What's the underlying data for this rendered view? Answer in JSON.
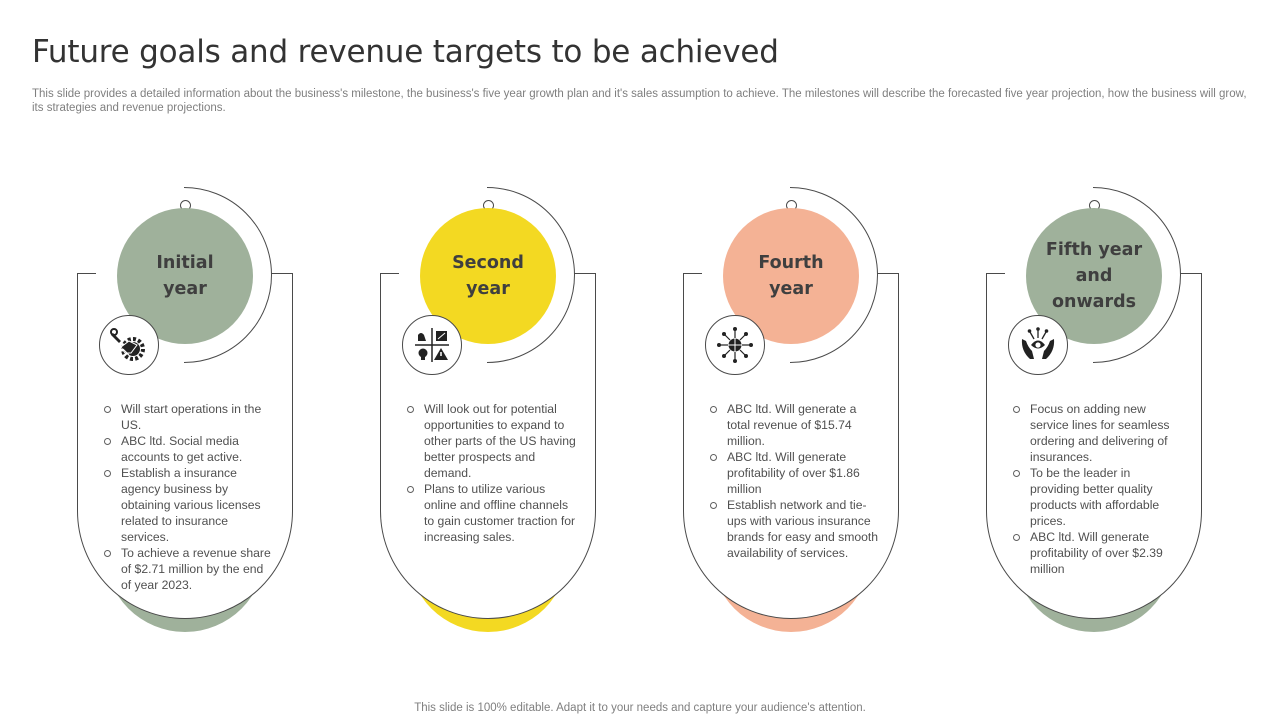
{
  "header": {
    "title": "Future goals and revenue targets to be achieved",
    "subtitle": "This slide provides a detailed information about the business's milestone, the business's five year growth plan and it's sales assumption to achieve. The milestones will describe the forecasted five year projection, how the business will grow, its strategies and revenue projections."
  },
  "footer": {
    "text": "This slide is 100% editable. Adapt it to your needs and capture your audience's attention."
  },
  "milestones": [
    {
      "label_line1": "Initial",
      "label_line2": "year",
      "label_line3": "",
      "color": "#9fb19b",
      "icon": "gear-wrench-handshake-icon",
      "bullets": [
        "Will start operations in the US.",
        "ABC ltd. Social media accounts to get active.",
        "Establish a insurance agency business by obtaining various licenses related to insurance services.",
        "To achieve a revenue share of $2.71 million by the end of year 2023."
      ]
    },
    {
      "label_line1": "Second",
      "label_line2": "year",
      "label_line3": "",
      "color": "#f3d922",
      "icon": "business-quadrant-icon",
      "bullets": [
        "Will look out for potential opportunities to expand to other parts of the US having better prospects and demand.",
        "Plans to utilize various online and offline channels to gain customer traction for increasing sales."
      ]
    },
    {
      "label_line1": "Fourth",
      "label_line2": "year",
      "label_line3": "",
      "color": "#f4b295",
      "icon": "globe-network-icon",
      "bullets": [
        "ABC ltd. Will generate a total revenue of $15.74 million.",
        "ABC ltd. Will generate profitability of over $1.86 million",
        "Establish network and tie-ups with various insurance brands for easy and smooth availability of services."
      ]
    },
    {
      "label_line1": "Fifth year",
      "label_line2": "and",
      "label_line3": "onwards",
      "color": "#9fb19b",
      "icon": "hands-growth-icon",
      "bullets": [
        "Focus on adding new service lines for seamless ordering and delivering of insurances.",
        "To be the leader in providing better quality products with affordable prices.",
        "ABC ltd. Will generate profitability of over $2.39 million"
      ]
    }
  ]
}
